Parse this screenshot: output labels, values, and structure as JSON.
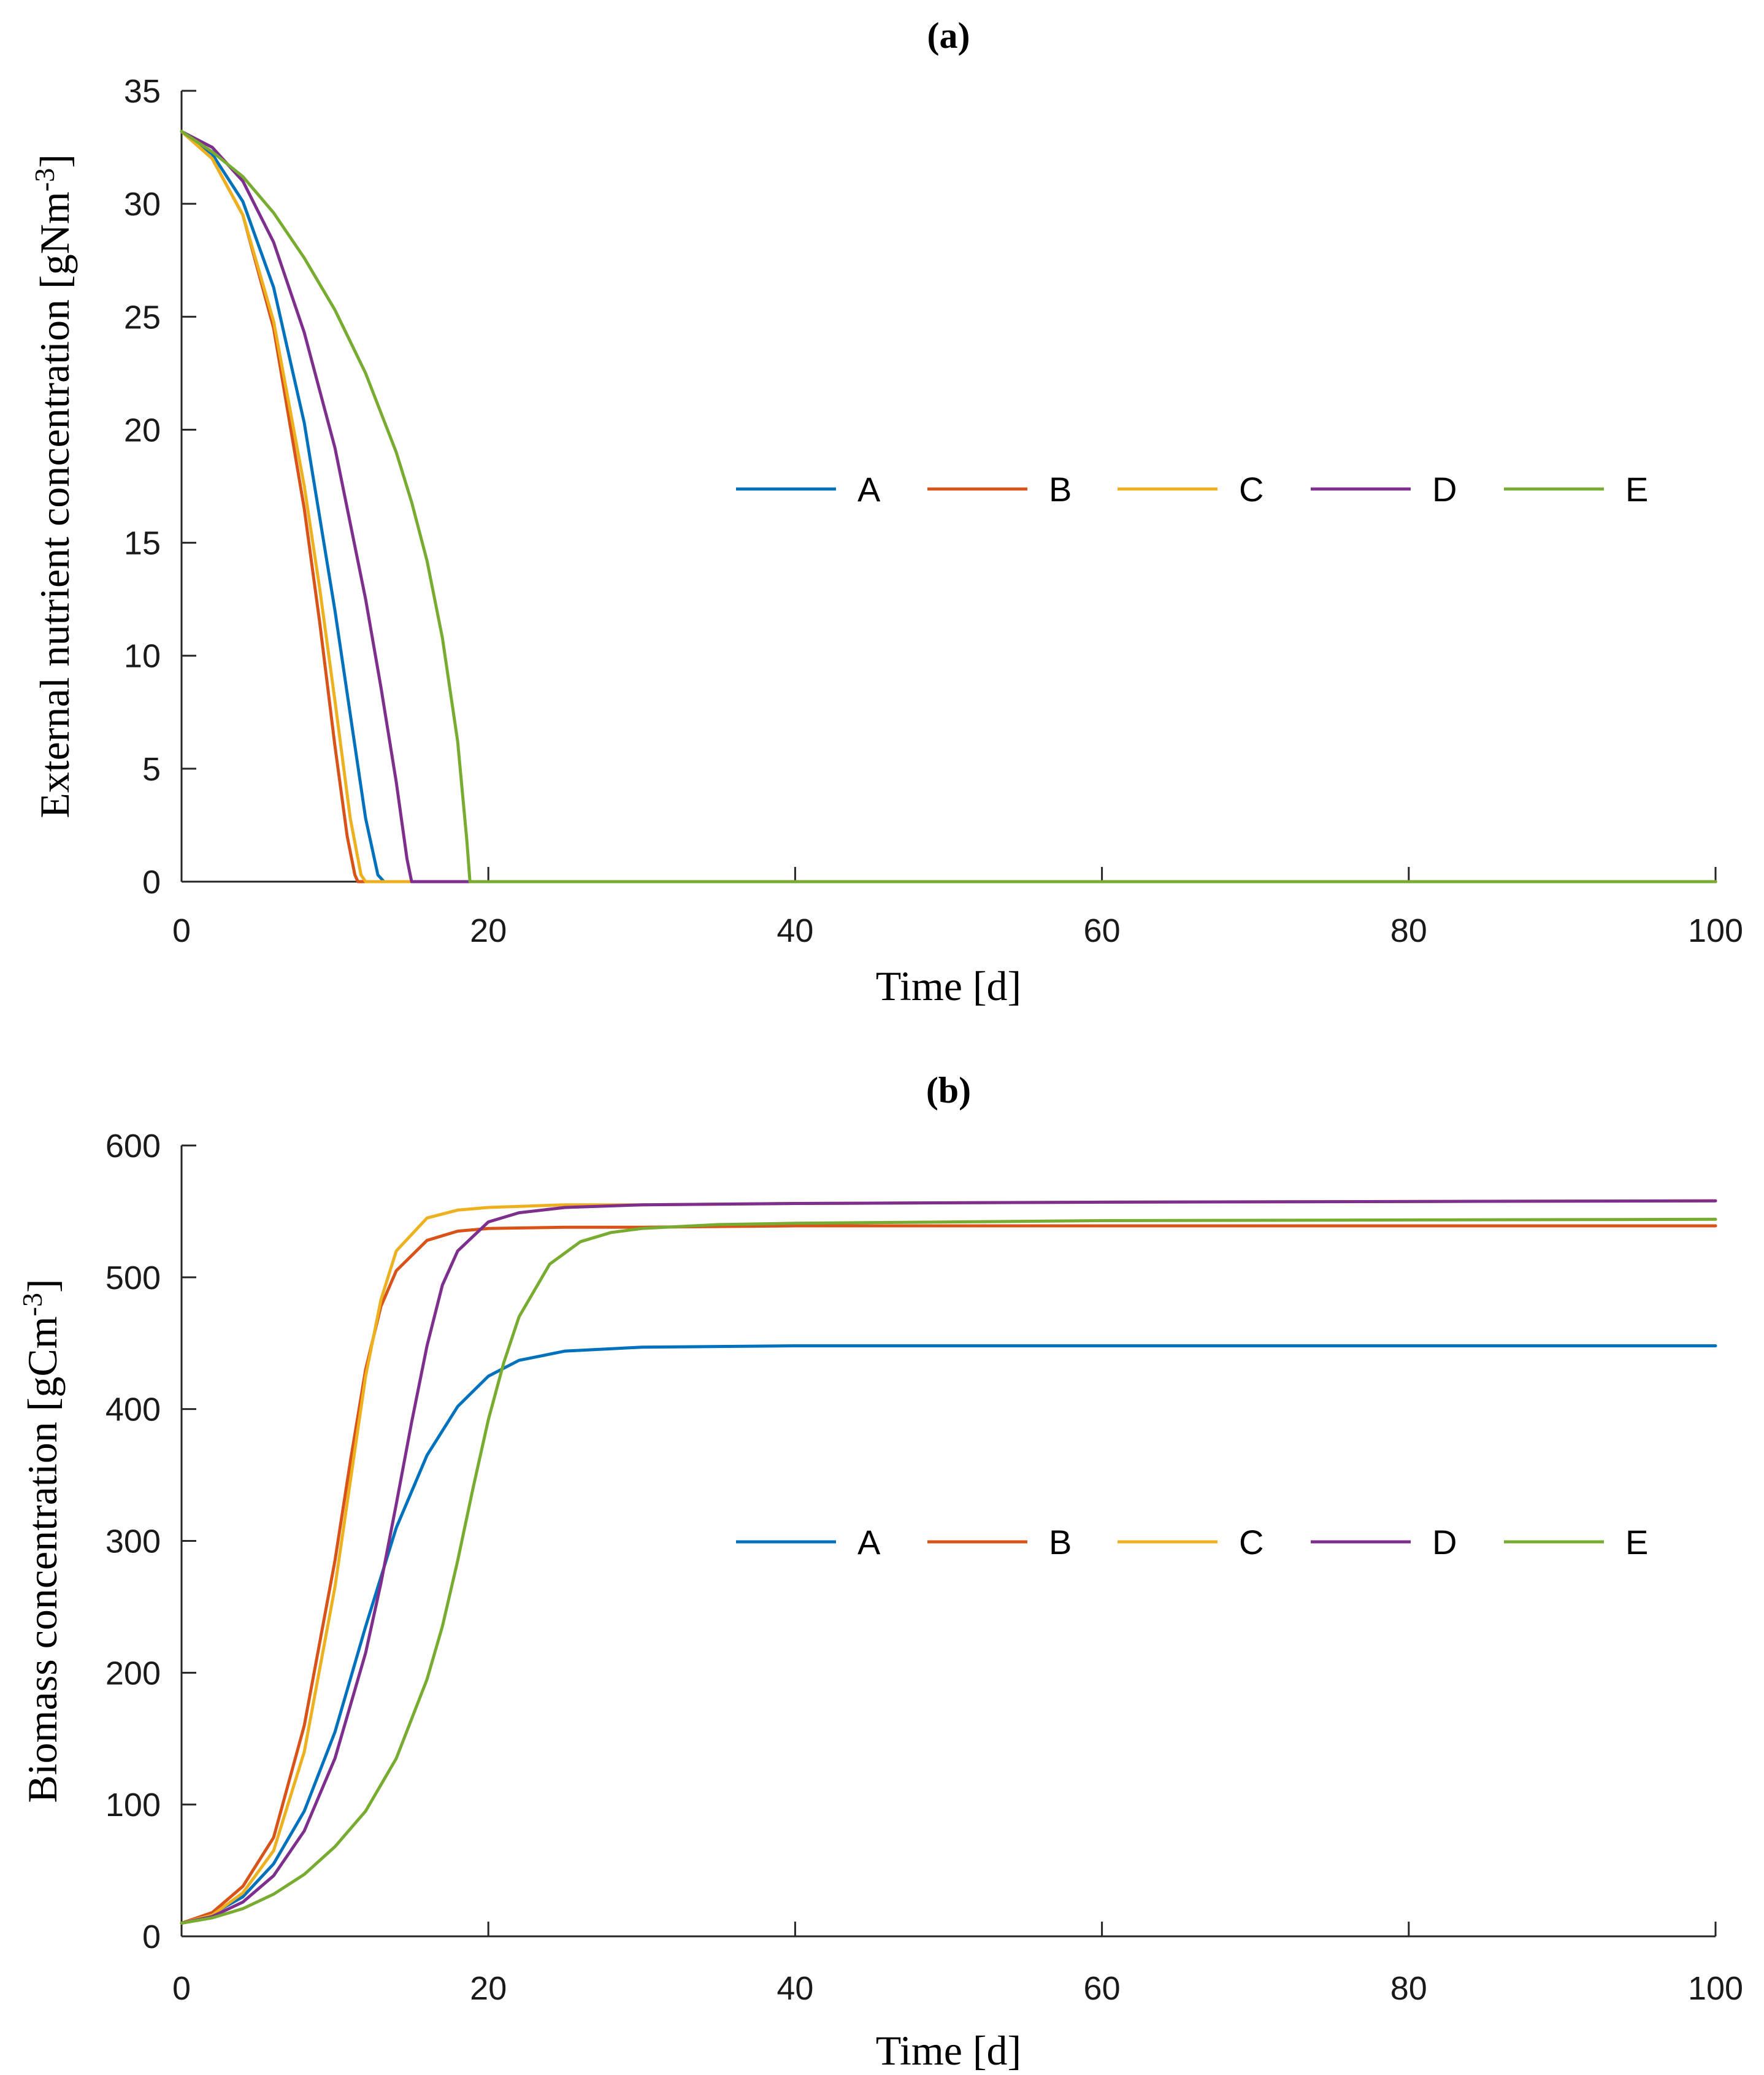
{
  "chart_data": [
    {
      "type": "line",
      "title": "(a)",
      "xlabel": "Time [d]",
      "ylabel": "External nutrient concentration [gNm",
      "ylabel_sup": "-3",
      "ylabel_end": "]",
      "xlim": [
        0,
        100
      ],
      "ylim": [
        0,
        35
      ],
      "xticks": [
        0,
        20,
        40,
        60,
        80,
        100
      ],
      "yticks": [
        0,
        5,
        10,
        15,
        20,
        25,
        30,
        35
      ],
      "legend": {
        "placement": "center-right",
        "orientation": "horizontal"
      },
      "series": [
        {
          "name": "A",
          "color": "#0072BD",
          "x": [
            0,
            2,
            4,
            6,
            8,
            10,
            11,
            12,
            12.8,
            13.2,
            100
          ],
          "y": [
            33.2,
            32.2,
            30.1,
            26.3,
            20.3,
            12.0,
            7.4,
            2.8,
            0.3,
            0,
            0
          ]
        },
        {
          "name": "B",
          "color": "#D95319",
          "x": [
            0,
            2,
            4,
            6,
            8,
            9,
            10,
            10.8,
            11.3,
            11.5,
            100
          ],
          "y": [
            33.2,
            32.0,
            29.5,
            24.5,
            16.5,
            11.5,
            6.0,
            2.0,
            0.3,
            0,
            0
          ]
        },
        {
          "name": "C",
          "color": "#EDB120",
          "x": [
            0,
            2,
            4,
            6,
            8,
            9,
            10,
            11,
            11.7,
            12.0,
            100
          ],
          "y": [
            33.2,
            32.0,
            29.5,
            24.8,
            17.5,
            13.0,
            8.0,
            2.8,
            0.3,
            0,
            0
          ]
        },
        {
          "name": "D",
          "color": "#7E2F8E",
          "x": [
            0,
            2,
            4,
            6,
            8,
            10,
            12,
            13,
            14,
            14.7,
            15.0,
            100
          ],
          "y": [
            33.2,
            32.5,
            31.0,
            28.3,
            24.3,
            19.2,
            12.5,
            8.6,
            4.4,
            1.0,
            0,
            0
          ]
        },
        {
          "name": "E",
          "color": "#77AC30",
          "x": [
            0,
            2,
            4,
            6,
            8,
            10,
            12,
            14,
            15,
            16,
            17,
            18,
            18.6,
            18.8,
            100
          ],
          "y": [
            33.2,
            32.3,
            31.2,
            29.6,
            27.6,
            25.3,
            22.5,
            19.0,
            16.8,
            14.2,
            10.8,
            6.2,
            1.8,
            0,
            0
          ]
        }
      ]
    },
    {
      "type": "line",
      "title": "(b)",
      "xlabel": "Time [d]",
      "ylabel": "Biomass concentration [gCm",
      "ylabel_sup": "-3",
      "ylabel_end": "]",
      "xlim": [
        0,
        100
      ],
      "ylim": [
        0,
        600
      ],
      "xticks": [
        0,
        20,
        40,
        60,
        80,
        100
      ],
      "yticks": [
        0,
        100,
        200,
        300,
        400,
        500,
        600
      ],
      "legend": {
        "placement": "center-right",
        "orientation": "horizontal"
      },
      "series": [
        {
          "name": "A",
          "color": "#0072BD",
          "x": [
            0,
            2,
            4,
            6,
            8,
            10,
            12,
            14,
            16,
            18,
            20,
            22,
            25,
            30,
            40,
            60,
            100
          ],
          "y": [
            10,
            17,
            30,
            55,
            95,
            155,
            235,
            310,
            365,
            402,
            425,
            437,
            444,
            447,
            448,
            448,
            448
          ]
        },
        {
          "name": "B",
          "color": "#D95319",
          "x": [
            0,
            2,
            4,
            6,
            8,
            10,
            11,
            12,
            13,
            14,
            16,
            18,
            20,
            25,
            30,
            40,
            60,
            100
          ],
          "y": [
            10,
            18,
            38,
            75,
            160,
            285,
            360,
            430,
            478,
            505,
            528,
            535,
            537,
            538,
            538,
            539,
            539,
            539
          ]
        },
        {
          "name": "C",
          "color": "#EDB120",
          "x": [
            0,
            2,
            4,
            6,
            8,
            10,
            11,
            12,
            13,
            14,
            16,
            18,
            20,
            25,
            30,
            40,
            60,
            100
          ],
          "y": [
            10,
            16,
            33,
            65,
            140,
            265,
            345,
            425,
            483,
            520,
            545,
            551,
            553,
            555,
            555,
            556,
            557,
            558
          ]
        },
        {
          "name": "D",
          "color": "#7E2F8E",
          "x": [
            0,
            2,
            4,
            6,
            8,
            10,
            12,
            13,
            14,
            15,
            16,
            17,
            18,
            20,
            22,
            25,
            30,
            40,
            60,
            100
          ],
          "y": [
            10,
            15,
            26,
            46,
            80,
            135,
            215,
            268,
            328,
            390,
            448,
            494,
            520,
            542,
            549,
            553,
            555,
            556,
            557,
            558
          ]
        },
        {
          "name": "E",
          "color": "#77AC30",
          "x": [
            0,
            2,
            4,
            6,
            8,
            10,
            12,
            14,
            16,
            17,
            18,
            19,
            20,
            21,
            22,
            24,
            26,
            28,
            30,
            35,
            40,
            60,
            100
          ],
          "y": [
            10,
            14,
            21,
            32,
            47,
            68,
            95,
            135,
            195,
            235,
            285,
            340,
            392,
            435,
            470,
            510,
            527,
            534,
            537,
            540,
            541,
            543,
            544
          ]
        }
      ]
    }
  ]
}
